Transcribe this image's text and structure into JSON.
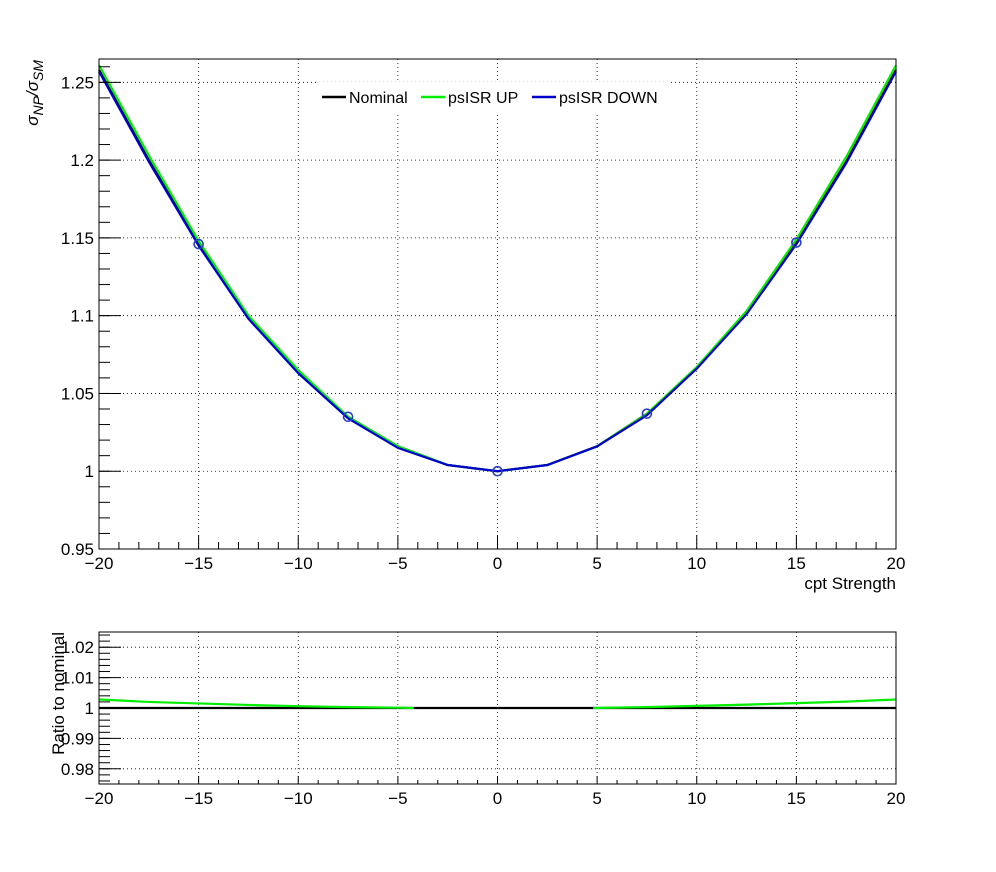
{
  "chart_data": [
    {
      "type": "line",
      "title": "",
      "xlabel": "cpt Strength",
      "ylabel_main": "σ",
      "ylabel_sub1": "NP",
      "ylabel_sep": "/σ",
      "ylabel_sub2": "SM",
      "xlim": [
        -20,
        20
      ],
      "ylim": [
        0.95,
        1.265
      ],
      "grid": true,
      "legend_position": "top-center",
      "xticks": [
        -20,
        -15,
        -10,
        -5,
        0,
        5,
        10,
        15,
        20
      ],
      "xtick_labels": [
        "−20",
        "−15",
        "−10",
        "−5",
        "0",
        "5",
        "10",
        "15",
        "20"
      ],
      "yticks": [
        0.95,
        1,
        1.05,
        1.1,
        1.15,
        1.2,
        1.25
      ],
      "ytick_labels": [
        "0.95",
        "1",
        "1.05",
        "1.1",
        "1.15",
        "1.2",
        "1.25"
      ],
      "series": [
        {
          "name": "Nominal",
          "color": "#000000",
          "x": [
            -20,
            -17.5,
            -15,
            -12.5,
            -10,
            -7.5,
            -5,
            -2.5,
            0,
            2.5,
            5,
            7.5,
            10,
            12.5,
            15,
            17.5,
            20
          ],
          "y": [
            1.258,
            1.2,
            1.146,
            1.099,
            1.064,
            1.035,
            1.016,
            1.004,
            1.0,
            1.004,
            1.016,
            1.037,
            1.066,
            1.102,
            1.147,
            1.199,
            1.258
          ]
        },
        {
          "name": "psISR UP",
          "color": "#00ee00",
          "x": [
            -20,
            -17.5,
            -15,
            -12.5,
            -10,
            -7.5,
            -5,
            -2.5,
            0,
            2.5,
            5,
            7.5,
            10,
            12.5,
            15,
            17.5,
            20
          ],
          "y": [
            1.261,
            1.203,
            1.148,
            1.1,
            1.065,
            1.035,
            1.016,
            1.004,
            1.0,
            1.004,
            1.016,
            1.037,
            1.067,
            1.103,
            1.149,
            1.202,
            1.261
          ]
        },
        {
          "name": "psISR DOWN",
          "color": "#0000cc",
          "x": [
            -20,
            -17.5,
            -15,
            -12.5,
            -10,
            -7.5,
            -5,
            -2.5,
            0,
            2.5,
            5,
            7.5,
            10,
            12.5,
            15,
            17.5,
            20
          ],
          "y": [
            1.257,
            1.199,
            1.145,
            1.098,
            1.063,
            1.034,
            1.015,
            1.004,
            1.0,
            1.004,
            1.016,
            1.036,
            1.066,
            1.101,
            1.146,
            1.198,
            1.257
          ]
        }
      ],
      "markers": {
        "color": "#2a3fbf",
        "x": [
          -15,
          -7.5,
          0,
          7.5,
          15
        ],
        "y": [
          1.146,
          1.035,
          1.0,
          1.037,
          1.147
        ]
      }
    },
    {
      "type": "line",
      "title": "",
      "xlabel": "",
      "ylabel": "Ratio to nominal",
      "xlim": [
        -20,
        20
      ],
      "ylim": [
        0.975,
        1.025
      ],
      "grid": true,
      "xticks": [
        -20,
        -15,
        -10,
        -5,
        0,
        5,
        10,
        15,
        20
      ],
      "xtick_labels": [
        "−20",
        "−15",
        "−10",
        "−5",
        "0",
        "5",
        "10",
        "15",
        "20"
      ],
      "yticks": [
        0.98,
        0.99,
        1,
        1.01,
        1.02
      ],
      "ytick_labels": [
        "0.98",
        "0.99",
        "1",
        "1.01",
        "1.02"
      ],
      "series": [
        {
          "name": "Nominal",
          "color": "#000000",
          "x": [
            -20,
            20
          ],
          "y": [
            1.0,
            1.0
          ]
        },
        {
          "name": "psISR UP",
          "color": "#00ee00",
          "x": [
            -20,
            -17.5,
            -15,
            -12.5,
            -10,
            -7.5,
            -5,
            -4.2
          ],
          "y": [
            1.0028,
            1.002,
            1.0015,
            1.001,
            1.0006,
            1.0003,
            1.0001,
            1.0
          ]
        },
        {
          "name": "psISR UP",
          "color": "#00ee00",
          "x": [
            4.8,
            7.5,
            10,
            12.5,
            15,
            17.5,
            20
          ],
          "y": [
            1.0,
            1.0003,
            1.0007,
            1.0011,
            1.0016,
            1.0021,
            1.0028
          ]
        }
      ]
    }
  ]
}
